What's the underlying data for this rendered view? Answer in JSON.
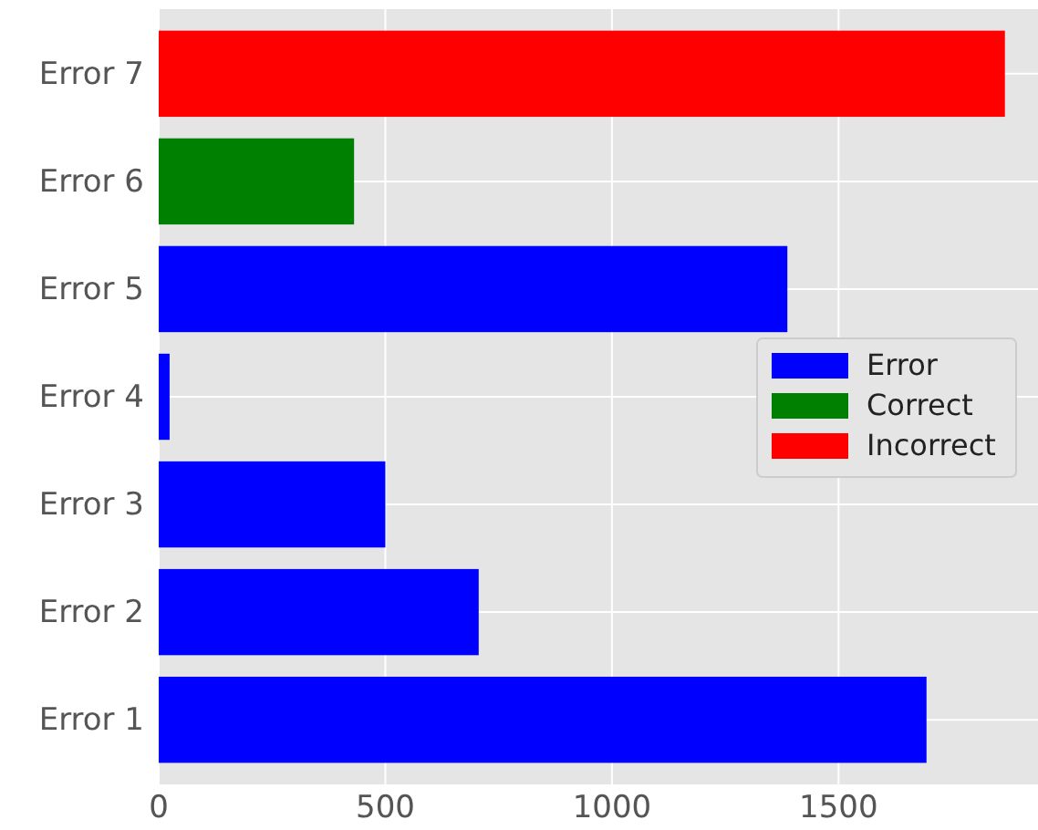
{
  "chart_data": {
    "type": "bar",
    "orientation": "horizontal",
    "categories": [
      "Error 7",
      "Error 6",
      "Error 5",
      "Error 4",
      "Error 3",
      "Error 2",
      "Error 1"
    ],
    "series": [
      {
        "name": "Error",
        "color": "#0000ff",
        "values": [
          null,
          null,
          1387,
          24,
          500,
          706,
          1694
        ]
      },
      {
        "name": "Correct",
        "color": "#008000",
        "values": [
          null,
          431,
          null,
          null,
          null,
          null,
          null
        ]
      },
      {
        "name": "Incorrect",
        "color": "#ff0000",
        "values": [
          1867,
          null,
          null,
          null,
          null,
          null,
          null
        ]
      }
    ],
    "xlim": [
      0,
      1940
    ],
    "xticks": [
      0,
      500,
      1000,
      1500
    ],
    "grid": true,
    "legend": "right"
  }
}
